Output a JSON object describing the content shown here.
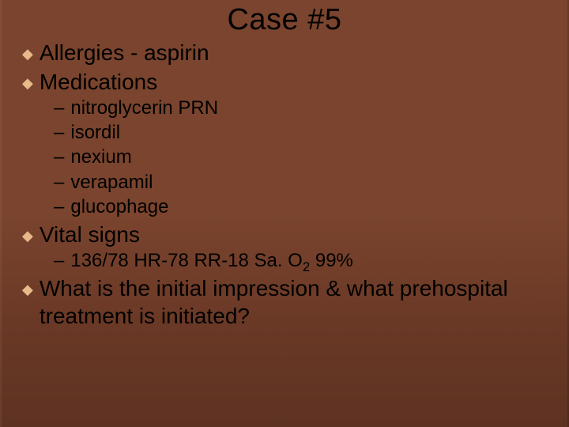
{
  "slide": {
    "title": "Case #5",
    "background_gradient": [
      "#7a442e",
      "#7a442e",
      "#6a3926",
      "#5e3221"
    ],
    "bullet_color": "#e8b98a",
    "text_color": "#000000",
    "title_fontsize": 38,
    "l1_fontsize": 28,
    "l2_fontsize": 24,
    "font_family": "Verdana",
    "items": [
      {
        "text": "Allergies - aspirin",
        "sub": []
      },
      {
        "text": "Medications",
        "sub": [
          "nitroglycerin PRN",
          "isordil",
          "nexium",
          "verapamil",
          "glucophage"
        ]
      },
      {
        "text": "Vital signs",
        "sub_html": [
          "136/78  HR-78  RR-18 Sa. O<sub>2</sub> 99%"
        ],
        "sub": [
          "136/78  HR-78  RR-18 Sa. O2 99%"
        ]
      },
      {
        "text": "What is the initial impression & what prehospital treatment is initiated?",
        "sub": []
      }
    ]
  }
}
